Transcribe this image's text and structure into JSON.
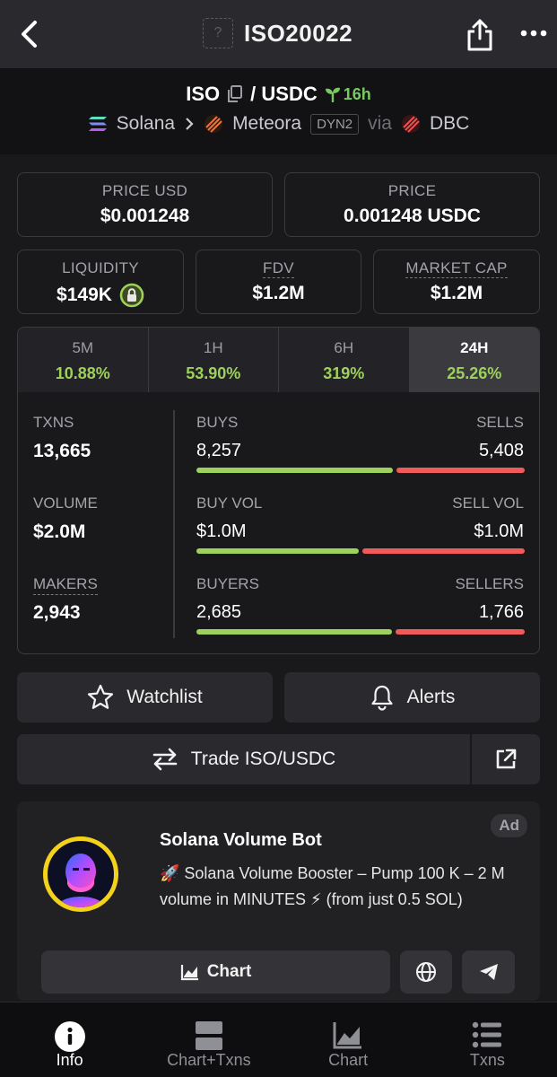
{
  "header": {
    "title": "ISO20022",
    "placeholder_glyph": "?"
  },
  "pair": {
    "base": "ISO",
    "quote": "/ USDC",
    "age": "16h",
    "chain": "Solana",
    "dex": "Meteora",
    "dex_badge": "DYN2",
    "via": "via",
    "launchpad": "DBC"
  },
  "price_cards": [
    {
      "label": "PRICE USD",
      "value": "$0.001248"
    },
    {
      "label": "PRICE",
      "value": "0.001248 USDC"
    }
  ],
  "metric_cards": [
    {
      "label": "LIQUIDITY",
      "value": "$149K"
    },
    {
      "label": "FDV",
      "value": "$1.2M"
    },
    {
      "label": "MARKET CAP",
      "value": "$1.2M"
    }
  ],
  "timeframes": [
    {
      "label": "5M",
      "change": "10.88%"
    },
    {
      "label": "1H",
      "change": "53.90%"
    },
    {
      "label": "6H",
      "change": "319%"
    },
    {
      "label": "24H",
      "change": "25.26%",
      "active": true
    }
  ],
  "stats": {
    "txns": {
      "label": "TXNS",
      "value": "13,665"
    },
    "volume": {
      "label": "VOLUME",
      "value": "$2.0M"
    },
    "makers": {
      "label": "MAKERS",
      "value": "2,943"
    },
    "buys": {
      "label": "BUYS",
      "value": "8,257"
    },
    "sells": {
      "label": "SELLS",
      "value": "5,408"
    },
    "buy_vol": {
      "label": "BUY VOL",
      "value": "$1.0M"
    },
    "sell_vol": {
      "label": "SELL VOL",
      "value": "$1.0M"
    },
    "buyers": {
      "label": "BUYERS",
      "value": "2,685"
    },
    "sellers": {
      "label": "SELLERS",
      "value": "1,766"
    },
    "buy_share": {
      "txns": 0.604,
      "volume": 0.5,
      "makers": 0.603
    }
  },
  "actions": {
    "watchlist": "Watchlist",
    "alerts": "Alerts",
    "trade": "Trade ISO/USDC"
  },
  "ad": {
    "tag": "Ad",
    "title": "Solana Volume Bot",
    "description": "🚀 Solana Volume Booster – Pump 100 K – 2 M volume in MINUTES ⚡ (from just 0.5 SOL)",
    "chart_button": "Chart"
  },
  "bottom_nav": [
    {
      "label": "Info",
      "icon": "info-icon",
      "active": true
    },
    {
      "label": "Chart+Txns",
      "icon": "split-view-icon"
    },
    {
      "label": "Chart",
      "icon": "area-chart-icon"
    },
    {
      "label": "Txns",
      "icon": "list-icon"
    }
  ],
  "colors": {
    "positive": "#9ed15c",
    "negative": "#f05a5a",
    "accent_yellow": "#f3d21b",
    "age_green": "#7ac862"
  }
}
